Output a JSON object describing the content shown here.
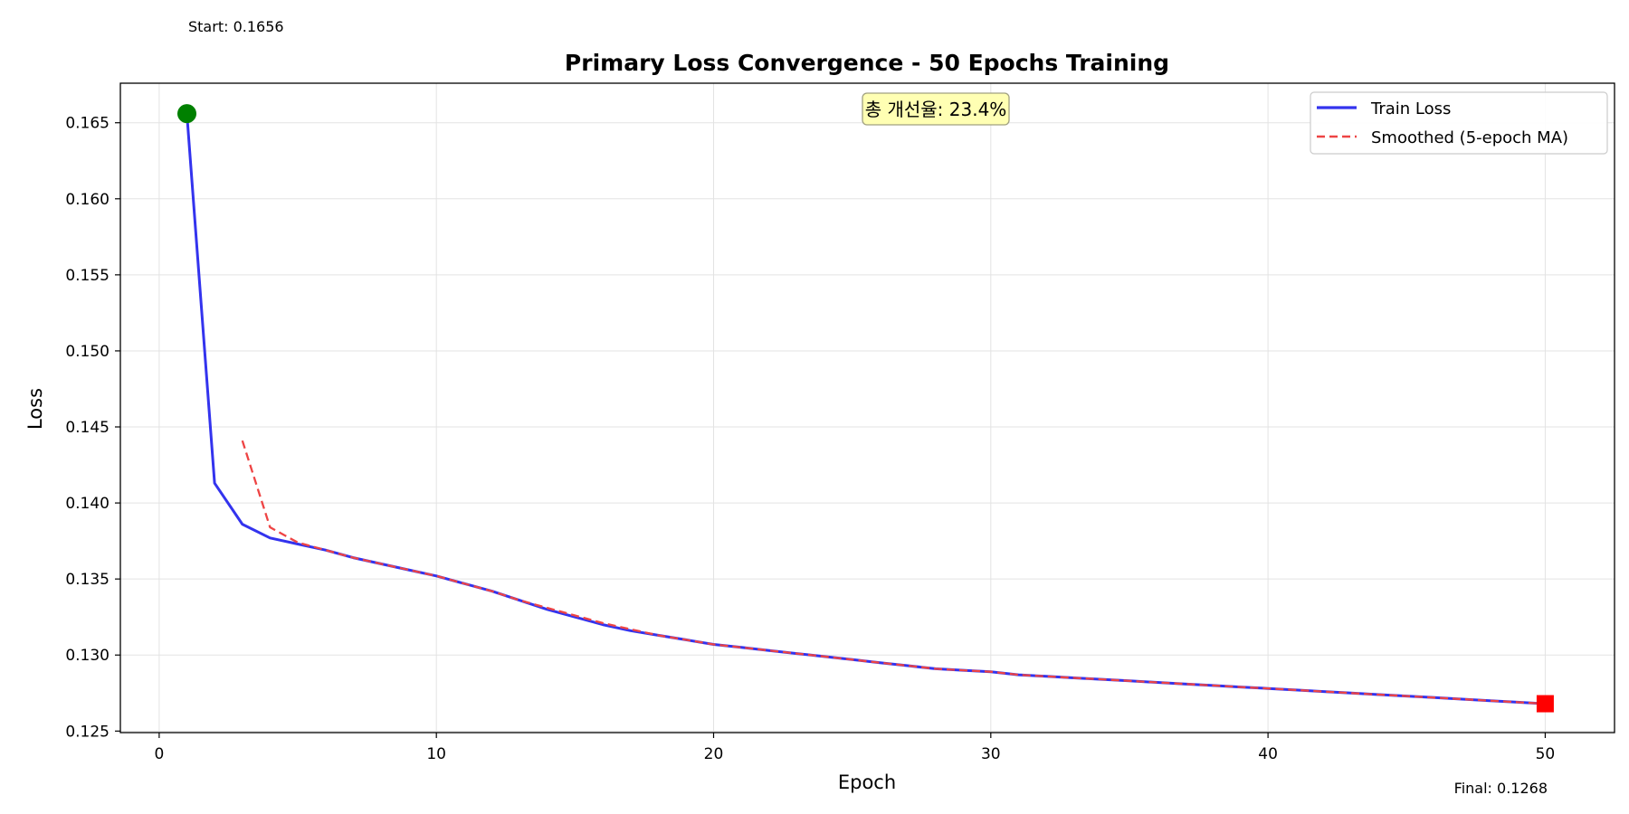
{
  "chart_data": {
    "type": "line",
    "title": "Primary Loss Convergence - 50 Epochs Training",
    "xlabel": "Epoch",
    "ylabel": "Loss",
    "xlim": [
      -1.4,
      52.5
    ],
    "ylim": [
      0.1249,
      0.1676
    ],
    "xticks": [
      0,
      10,
      20,
      30,
      40,
      50
    ],
    "yticks": [
      0.125,
      0.13,
      0.135,
      0.14,
      0.145,
      0.15,
      0.155,
      0.16,
      0.165
    ],
    "grid": true,
    "legend_position": "top-right",
    "series": [
      {
        "name": "Train Loss",
        "color": "#3333ee",
        "style": "solid",
        "x": [
          1,
          2,
          3,
          4,
          5,
          6,
          7,
          8,
          9,
          10,
          11,
          12,
          13,
          14,
          15,
          16,
          17,
          18,
          19,
          20,
          21,
          22,
          23,
          24,
          25,
          26,
          27,
          28,
          29,
          30,
          31,
          32,
          33,
          34,
          35,
          36,
          37,
          38,
          39,
          40,
          41,
          42,
          43,
          44,
          45,
          46,
          47,
          48,
          49,
          50
        ],
        "values": [
          0.1656,
          0.1413,
          0.1386,
          0.1377,
          0.1373,
          0.1369,
          0.1364,
          0.136,
          0.1356,
          0.1352,
          0.1347,
          0.1342,
          0.1336,
          0.133,
          0.1325,
          0.132,
          0.1316,
          0.1313,
          0.131,
          0.1307,
          0.1305,
          0.1303,
          0.1301,
          0.1299,
          0.1297,
          0.1295,
          0.1293,
          0.1291,
          0.129,
          0.1289,
          0.1287,
          0.1286,
          0.1285,
          0.1284,
          0.1283,
          0.1282,
          0.1281,
          0.128,
          0.1279,
          0.1278,
          0.1277,
          0.1276,
          0.1275,
          0.1274,
          0.1273,
          0.1272,
          0.1271,
          0.127,
          0.1269,
          0.1268
        ]
      },
      {
        "name": "Smoothed (5-epoch MA)",
        "color": "#ee4444",
        "style": "dashed",
        "x": [
          3,
          4,
          5,
          6,
          7,
          8,
          9,
          10,
          11,
          12,
          13,
          14,
          15,
          16,
          17,
          18,
          19,
          20,
          21,
          22,
          23,
          24,
          25,
          26,
          27,
          28,
          29,
          30,
          31,
          32,
          33,
          34,
          35,
          36,
          37,
          38,
          39,
          40,
          41,
          42,
          43,
          44,
          45,
          46,
          47,
          48,
          49,
          50
        ],
        "values": [
          0.1441,
          0.1384,
          0.1374,
          0.1369,
          0.1364,
          0.136,
          0.1356,
          0.1352,
          0.1347,
          0.1342,
          0.1336,
          0.1331,
          0.1326,
          0.1321,
          0.1317,
          0.1313,
          0.131,
          0.1307,
          0.1305,
          0.1303,
          0.1301,
          0.1299,
          0.1297,
          0.1295,
          0.1293,
          0.1291,
          0.129,
          0.1289,
          0.1287,
          0.1286,
          0.1285,
          0.1284,
          0.1283,
          0.1282,
          0.1281,
          0.128,
          0.1279,
          0.1278,
          0.1277,
          0.1276,
          0.1275,
          0.1274,
          0.1273,
          0.1272,
          0.1271,
          0.127,
          0.1269,
          0.1268
        ]
      }
    ],
    "start_marker": {
      "x": 1,
      "y": 0.1656,
      "color": "#008000",
      "shape": "circle"
    },
    "end_marker": {
      "x": 50,
      "y": 0.1268,
      "color": "#ff0000",
      "shape": "square"
    },
    "annotations": {
      "start_label": "Start: 0.1656",
      "final_label": "Final: 0.1268",
      "improvement_badge": "총 개선율: 23.4%"
    },
    "colors": {
      "grid": "#e3e3e3",
      "badge_fill": "#ffffb3",
      "badge_border": "#a0a080",
      "legend_border": "#cccccc"
    }
  }
}
